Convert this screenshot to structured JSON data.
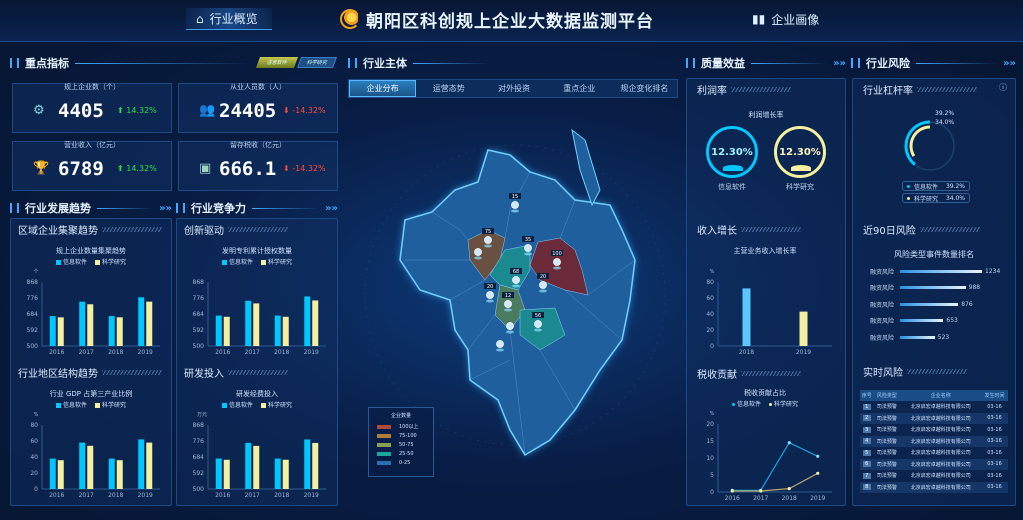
{
  "header": {
    "title": "朝阳区科创规上企业大数据监测平台",
    "nav_left": "行业概览",
    "nav_right": "企业画像"
  },
  "colors": {
    "cyan": "#00c8ff",
    "yellow": "#f5f0a0",
    "up": "#28e04a",
    "down": "#ff4a3a"
  },
  "left": {
    "key_section": "重点指标",
    "tags": [
      "信息软件",
      "科学研究"
    ],
    "kpis": [
      {
        "label": "规上企业数（个）",
        "value": "4405",
        "change": "14.32%",
        "dir": "up",
        "icon": "gear-icon"
      },
      {
        "label": "从业人员数（人）",
        "value": "24405",
        "change": "-14.32%",
        "dir": "down",
        "icon": "people-icon"
      },
      {
        "label": "营业收入（亿元）",
        "value": "6789",
        "change": "14.32%",
        "dir": "up",
        "icon": "trophy-icon"
      },
      {
        "label": "留存税收（亿元）",
        "value": "666.1",
        "change": "-14.32%",
        "dir": "down",
        "icon": "coin-stack-icon"
      }
    ],
    "trend_section": "行业发展趋势",
    "compete_section": "行业竞争力",
    "panels": [
      {
        "sub": "区域企业集聚趋势",
        "chart": "c1"
      },
      {
        "sub": "创新驱动",
        "chart": "c2"
      },
      {
        "sub": "行业地区结构趋势",
        "chart": "c3"
      },
      {
        "sub": "研发投入",
        "chart": "c4"
      }
    ]
  },
  "center": {
    "section": "行业主体",
    "tabs": [
      "企业分布",
      "运营态势",
      "对外投资",
      "重点企业",
      "规企变化排名"
    ],
    "markers": [
      "15",
      "75",
      "35",
      "100",
      "68",
      "20",
      "20",
      "12",
      "56"
    ],
    "legend": {
      "title": "企业数量",
      "items": [
        {
          "label": "100以上",
          "color": "#b04a3a"
        },
        {
          "label": "75-100",
          "color": "#b07a3a"
        },
        {
          "label": "50-75",
          "color": "#8aa050"
        },
        {
          "label": "25-50",
          "color": "#1aa5a0"
        },
        {
          "label": "0-25",
          "color": "#2a70b0"
        }
      ]
    }
  },
  "right": {
    "quality_section": "质量效益",
    "risk_section": "行业风险",
    "profit": {
      "sub": "利润率",
      "title": "利润增长率",
      "items": [
        {
          "value": "12.30%",
          "label": "信息软件"
        },
        {
          "value": "12.30%",
          "label": "科学研究"
        }
      ]
    },
    "income_sub": "收入增长",
    "tax_sub": "税收贡献",
    "leverage": {
      "sub": "行业杠杆率",
      "items": [
        {
          "label": "信息软件",
          "value": "39.2%",
          "pct": 39.2
        },
        {
          "label": "科学研究",
          "value": "34.0%",
          "pct": 34.0
        }
      ]
    },
    "risk90": {
      "sub": "近90日风险",
      "title": "风险类型事件数量排名",
      "items": [
        {
          "label": "融资风险",
          "value": 1234
        },
        {
          "label": "融资风险",
          "value": 988
        },
        {
          "label": "融资风险",
          "value": 876
        },
        {
          "label": "融资风险",
          "value": 653
        },
        {
          "label": "融资风险",
          "value": 523
        }
      ]
    },
    "realtime": {
      "sub": "实时风险",
      "columns": [
        "序号",
        "风险类型",
        "企业名称",
        "发生时间"
      ],
      "rows": [
        [
          "1",
          "司法预警",
          "北京启宏卓越科技有限公司",
          "03-16"
        ],
        [
          "2",
          "司法预警",
          "北京启宏卓越科技有限公司",
          "03-16"
        ],
        [
          "3",
          "司法预警",
          "北京启宏卓越科技有限公司",
          "03-16"
        ],
        [
          "4",
          "司法预警",
          "北京启宏卓越科技有限公司",
          "03-16"
        ],
        [
          "5",
          "司法预警",
          "北京启宏卓越科技有限公司",
          "03-16"
        ],
        [
          "6",
          "司法预警",
          "北京启宏卓越科技有限公司",
          "03-16"
        ],
        [
          "7",
          "司法预警",
          "北京启宏卓越科技有限公司",
          "03-16"
        ],
        [
          "8",
          "司法预警",
          "北京启宏卓越科技有限公司",
          "03-16"
        ]
      ]
    }
  },
  "chart_data": [
    {
      "id": "c1",
      "type": "bar",
      "title": "规上企业数量集聚趋势",
      "ylabel": "个",
      "ylim": [
        500,
        868
      ],
      "yticks": [
        500,
        592,
        684,
        776,
        868
      ],
      "categories": [
        "2016",
        "2017",
        "2018",
        "2019"
      ],
      "series": [
        {
          "name": "信息软件",
          "values": [
            672,
            755,
            672,
            780
          ]
        },
        {
          "name": "科学研究",
          "values": [
            665,
            740,
            665,
            755
          ]
        }
      ]
    },
    {
      "id": "c2",
      "type": "bar",
      "title": "发明专利累计授权数量",
      "ylabel": "",
      "ylim": [
        500,
        868
      ],
      "yticks": [
        500,
        592,
        684,
        776,
        868
      ],
      "categories": [
        "2016",
        "2017",
        "2018",
        "2019"
      ],
      "series": [
        {
          "name": "信息软件",
          "values": [
            675,
            760,
            675,
            785
          ]
        },
        {
          "name": "科学研究",
          "values": [
            668,
            745,
            668,
            762
          ]
        }
      ]
    },
    {
      "id": "c3",
      "type": "bar",
      "title": "行业 GDP 占第三产业比例",
      "ylabel": "%",
      "ylim": [
        0,
        80
      ],
      "yticks": [
        0,
        20,
        40,
        60,
        80
      ],
      "categories": [
        "2016",
        "2017",
        "2018",
        "2019"
      ],
      "series": [
        {
          "name": "信息软件",
          "values": [
            38,
            58,
            38,
            62
          ]
        },
        {
          "name": "科学研究",
          "values": [
            36,
            54,
            36,
            58
          ]
        }
      ]
    },
    {
      "id": "c4",
      "type": "bar",
      "title": "研发经费投入",
      "ylabel": "万元",
      "ylim": [
        500,
        868
      ],
      "yticks": [
        500,
        592,
        684,
        776,
        868
      ],
      "categories": [
        "2016",
        "2017",
        "2018",
        "2019"
      ],
      "series": [
        {
          "name": "信息软件",
          "values": [
            675,
            765,
            675,
            785
          ]
        },
        {
          "name": "科学研究",
          "values": [
            668,
            748,
            668,
            765
          ]
        }
      ]
    },
    {
      "id": "c5",
      "type": "bar",
      "title": "主营业务收入增长率",
      "ylabel": "%",
      "ylim": [
        0,
        80
      ],
      "yticks": [
        0,
        20,
        40,
        60,
        80
      ],
      "categories": [
        "2018",
        "2019"
      ],
      "series": [
        {
          "values": [
            72,
            43
          ]
        }
      ],
      "colors": [
        "#5ac8ff",
        "#f5f0a0"
      ]
    },
    {
      "id": "c6",
      "type": "line",
      "title": "税收贡献占比",
      "ylabel": "%",
      "ylim": [
        0,
        20
      ],
      "yticks": [
        0,
        5,
        10,
        15,
        20
      ],
      "categories": [
        "2016",
        "2017",
        "2018",
        "2019"
      ],
      "series": [
        {
          "name": "信息软件",
          "values": [
            0.5,
            0.5,
            14.5,
            10.5
          ]
        },
        {
          "name": "科学研究",
          "values": [
            0.3,
            0.3,
            1,
            5.5
          ]
        }
      ]
    }
  ]
}
